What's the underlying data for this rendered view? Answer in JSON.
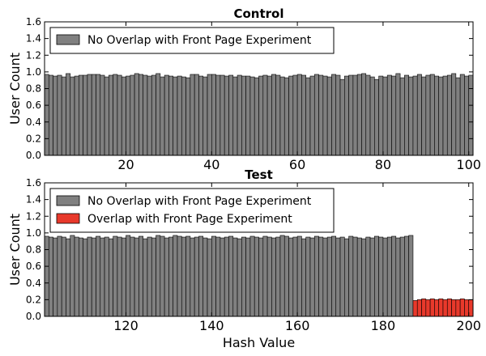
{
  "chart_data": [
    {
      "type": "bar",
      "title": "Control",
      "xlabel": "",
      "ylabel": "User Count",
      "xlim": [
        1,
        101
      ],
      "ylim": [
        0,
        1.6
      ],
      "xticks": [
        20,
        40,
        60,
        80,
        100
      ],
      "yticks": [
        "0.0",
        "0.2",
        "0.4",
        "0.6",
        "0.8",
        "1.0",
        "1.2",
        "1.4",
        "1.6"
      ],
      "legend_position": "upper-left",
      "series": [
        {
          "name": "No Overlap with Front Page Experiment",
          "color": "#808080",
          "x": [
            1,
            2,
            3,
            4,
            5,
            6,
            7,
            8,
            9,
            10,
            11,
            12,
            13,
            14,
            15,
            16,
            17,
            18,
            19,
            20,
            21,
            22,
            23,
            24,
            25,
            26,
            27,
            28,
            29,
            30,
            31,
            32,
            33,
            34,
            35,
            36,
            37,
            38,
            39,
            40,
            41,
            42,
            43,
            44,
            45,
            46,
            47,
            48,
            49,
            50,
            51,
            52,
            53,
            54,
            55,
            56,
            57,
            58,
            59,
            60,
            61,
            62,
            63,
            64,
            65,
            66,
            67,
            68,
            69,
            70,
            71,
            72,
            73,
            74,
            75,
            76,
            77,
            78,
            79,
            80,
            81,
            82,
            83,
            84,
            85,
            86,
            87,
            88,
            89,
            90,
            91,
            92,
            93,
            94,
            95,
            96,
            97,
            98,
            99,
            100
          ],
          "values": [
            0.97,
            0.96,
            0.95,
            0.96,
            0.94,
            0.98,
            0.94,
            0.95,
            0.96,
            0.96,
            0.97,
            0.97,
            0.97,
            0.96,
            0.94,
            0.96,
            0.97,
            0.96,
            0.94,
            0.95,
            0.96,
            0.98,
            0.97,
            0.96,
            0.95,
            0.96,
            0.98,
            0.94,
            0.96,
            0.95,
            0.94,
            0.95,
            0.94,
            0.93,
            0.97,
            0.97,
            0.95,
            0.94,
            0.97,
            0.97,
            0.96,
            0.96,
            0.95,
            0.96,
            0.94,
            0.96,
            0.95,
            0.95,
            0.94,
            0.93,
            0.95,
            0.96,
            0.95,
            0.97,
            0.96,
            0.94,
            0.93,
            0.95,
            0.96,
            0.97,
            0.96,
            0.93,
            0.95,
            0.97,
            0.96,
            0.95,
            0.94,
            0.97,
            0.96,
            0.91,
            0.95,
            0.96,
            0.96,
            0.97,
            0.98,
            0.96,
            0.94,
            0.91,
            0.95,
            0.94,
            0.96,
            0.95,
            0.98,
            0.93,
            0.96,
            0.94,
            0.95,
            0.97,
            0.94,
            0.96,
            0.97,
            0.95,
            0.94,
            0.95,
            0.96,
            0.98,
            0.93,
            0.97,
            0.95,
            0.96
          ]
        }
      ]
    },
    {
      "type": "bar",
      "title": "Test",
      "xlabel": "Hash Value",
      "ylabel": "User Count",
      "xlim": [
        101,
        201
      ],
      "ylim": [
        0,
        1.6
      ],
      "xticks": [
        120,
        140,
        160,
        180,
        200
      ],
      "yticks": [
        "0.0",
        "0.2",
        "0.4",
        "0.6",
        "0.8",
        "1.0",
        "1.2",
        "1.4",
        "1.6"
      ],
      "legend_position": "upper-left",
      "series": [
        {
          "name": "No Overlap with Front Page Experiment",
          "color": "#808080",
          "x": [
            101,
            102,
            103,
            104,
            105,
            106,
            107,
            108,
            109,
            110,
            111,
            112,
            113,
            114,
            115,
            116,
            117,
            118,
            119,
            120,
            121,
            122,
            123,
            124,
            125,
            126,
            127,
            128,
            129,
            130,
            131,
            132,
            133,
            134,
            135,
            136,
            137,
            138,
            139,
            140,
            141,
            142,
            143,
            144,
            145,
            146,
            147,
            148,
            149,
            150,
            151,
            152,
            153,
            154,
            155,
            156,
            157,
            158,
            159,
            160,
            161,
            162,
            163,
            164,
            165,
            166,
            167,
            168,
            169,
            170,
            171,
            172,
            173,
            174,
            175,
            176,
            177,
            178,
            179,
            180,
            181,
            182,
            183,
            184,
            185,
            186
          ],
          "values": [
            0.96,
            0.95,
            0.94,
            0.96,
            0.95,
            0.93,
            0.97,
            0.95,
            0.94,
            0.93,
            0.95,
            0.94,
            0.96,
            0.94,
            0.95,
            0.93,
            0.96,
            0.95,
            0.94,
            0.97,
            0.95,
            0.94,
            0.96,
            0.93,
            0.95,
            0.94,
            0.97,
            0.96,
            0.94,
            0.95,
            0.97,
            0.96,
            0.95,
            0.96,
            0.94,
            0.95,
            0.96,
            0.94,
            0.93,
            0.96,
            0.95,
            0.94,
            0.95,
            0.96,
            0.94,
            0.93,
            0.95,
            0.94,
            0.96,
            0.95,
            0.94,
            0.96,
            0.95,
            0.94,
            0.95,
            0.97,
            0.96,
            0.94,
            0.95,
            0.96,
            0.93,
            0.95,
            0.94,
            0.96,
            0.95,
            0.94,
            0.95,
            0.96,
            0.94,
            0.95,
            0.93,
            0.96,
            0.95,
            0.94,
            0.93,
            0.95,
            0.94,
            0.96,
            0.95,
            0.94,
            0.95,
            0.96,
            0.94,
            0.95,
            0.96,
            0.97
          ]
        },
        {
          "name": "Overlap with Front Page Experiment",
          "color": "#e8392b",
          "x": [
            187,
            188,
            189,
            190,
            191,
            192,
            193,
            194,
            195,
            196,
            197,
            198,
            199,
            200
          ],
          "values": [
            0.19,
            0.2,
            0.21,
            0.2,
            0.21,
            0.2,
            0.21,
            0.2,
            0.21,
            0.2,
            0.2,
            0.21,
            0.2,
            0.2
          ]
        }
      ]
    }
  ]
}
